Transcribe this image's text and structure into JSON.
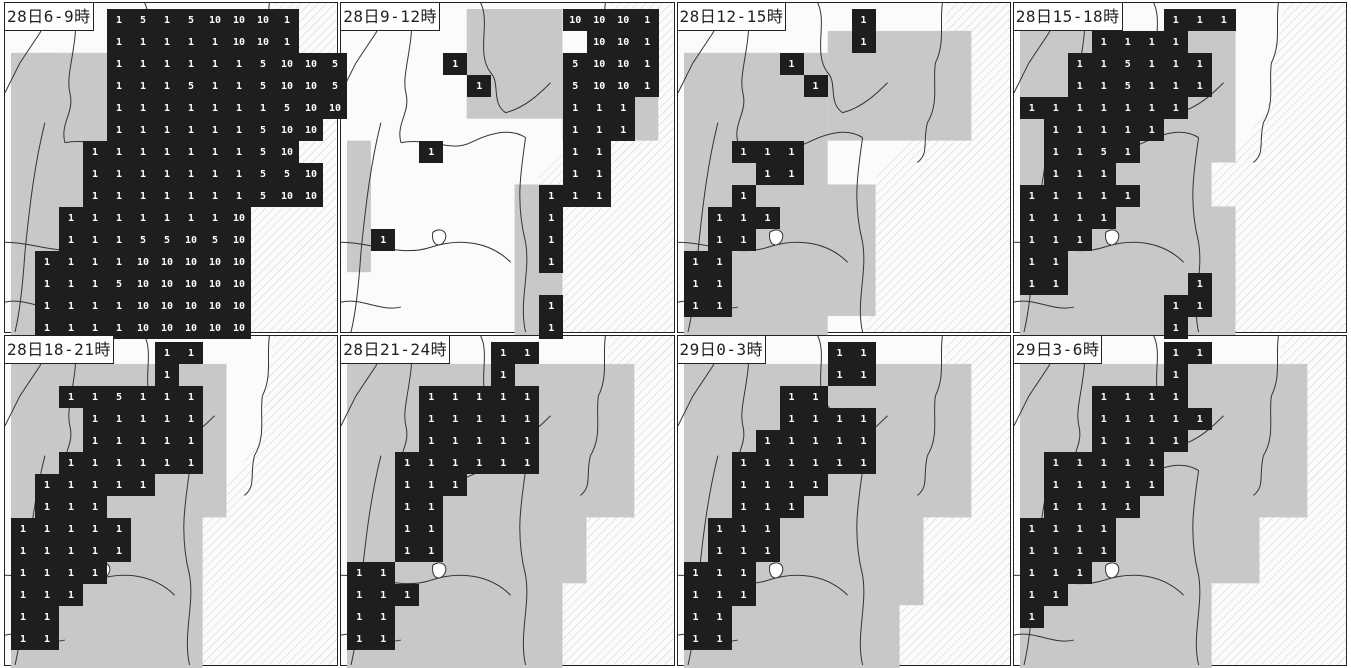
{
  "colors": {
    "dark": "#1e1e1e",
    "light": "#c8c8c8",
    "sea": "#f2f2f2",
    "border": "#222222"
  },
  "panels": [
    {
      "label": "28日6-9時",
      "light": [
        [
          0,
          2,
          2,
          8
        ],
        [
          0,
          3,
          3,
          12
        ],
        [
          1,
          2,
          9,
          13
        ],
        [
          0,
          5,
          1,
          13
        ]
      ],
      "grid": [
        [
          4,
          0,
          "1 5 1 5 10 10 10 1"
        ],
        [
          4,
          1,
          "1 1 1 1 1 10 10 1"
        ],
        [
          4,
          2,
          "1 1 1 1 1 1 5 10 10 5"
        ],
        [
          4,
          3,
          "1 1 1 5 1 1 5 10 10 5"
        ],
        [
          4,
          4,
          "1 1 1 1 1 1 1 5 10 10"
        ],
        [
          4,
          5,
          "1 1 1 1 1 1 5 10 10"
        ],
        [
          3,
          6,
          "1 1 1 1 1 1 1 5 10"
        ],
        [
          3,
          7,
          "1 1 1 1 1 1 1 5 5 10"
        ],
        [
          3,
          8,
          "1 1 1 1 1 1 1 5 10 10"
        ],
        [
          2,
          9,
          "1 1 1 1 1 1 1 10"
        ],
        [
          2,
          10,
          "1 1 1 5 5 10 5 10"
        ],
        [
          1,
          11,
          "1 1 1 1 10 10 10 10 10"
        ],
        [
          1,
          12,
          "1 1 1 5 10 10 10 10 10"
        ],
        [
          1,
          13,
          "1 1 1 1 10 10 10 10 10"
        ],
        [
          1,
          14,
          "1 1 1 1 10 10 10 10 10"
        ]
      ]
    },
    {
      "label": "28日9-12時",
      "light": [
        [
          5,
          0,
          4,
          5
        ],
        [
          9,
          2,
          4,
          4
        ],
        [
          0,
          6,
          1,
          6
        ],
        [
          7,
          8,
          2,
          7
        ]
      ],
      "grid": [
        [
          9,
          0,
          "10 10 10 1"
        ],
        [
          10,
          1,
          "10 10 1"
        ],
        [
          9,
          2,
          "5 10 10 1"
        ],
        [
          9,
          3,
          "5 10 10 1"
        ],
        [
          9,
          4,
          "1 1 1"
        ],
        [
          9,
          5,
          "1 1 1"
        ],
        [
          9,
          6,
          "1 1"
        ],
        [
          9,
          7,
          "1 1"
        ],
        [
          8,
          8,
          "1 1 1"
        ],
        [
          8,
          9,
          "1"
        ],
        [
          8,
          10,
          "1"
        ],
        [
          8,
          11,
          "1"
        ],
        [
          8,
          13,
          "1"
        ],
        [
          8,
          14,
          "1"
        ],
        [
          4,
          2,
          "1"
        ],
        [
          5,
          3,
          "1"
        ],
        [
          3,
          6,
          "1"
        ],
        [
          1,
          10,
          "1"
        ]
      ]
    },
    {
      "label": "28日12-15時",
      "light": [
        [
          0,
          2,
          6,
          13
        ],
        [
          6,
          1,
          6,
          5
        ],
        [
          2,
          8,
          6,
          6
        ]
      ],
      "grid": [
        [
          7,
          0,
          "1"
        ],
        [
          7,
          1,
          "1"
        ],
        [
          4,
          2,
          "1"
        ],
        [
          5,
          3,
          "1"
        ],
        [
          2,
          6,
          "1 1 1"
        ],
        [
          3,
          7,
          "1 1"
        ],
        [
          2,
          8,
          "1"
        ],
        [
          1,
          9,
          "1 1 1"
        ],
        [
          1,
          10,
          "1 1"
        ],
        [
          0,
          11,
          "1 1"
        ],
        [
          0,
          12,
          "1 1"
        ],
        [
          0,
          13,
          "1 1"
        ]
      ]
    },
    {
      "label": "28日15-18時",
      "light": [
        [
          0,
          1,
          9,
          6
        ],
        [
          0,
          7,
          8,
          8
        ],
        [
          6,
          9,
          3,
          6
        ]
      ],
      "grid": [
        [
          6,
          0,
          "1 1 1"
        ],
        [
          3,
          1,
          "1 1 1 1"
        ],
        [
          2,
          2,
          "1 1 5 1 1 1"
        ],
        [
          2,
          3,
          "1 1 5 1 1 1"
        ],
        [
          0,
          4,
          "1 1 1 1 1 1 1"
        ],
        [
          1,
          5,
          "1 1 1 1 1"
        ],
        [
          1,
          6,
          "1 1 5 1"
        ],
        [
          1,
          7,
          "1 1 1"
        ],
        [
          0,
          8,
          "1 1 1 1 1"
        ],
        [
          0,
          9,
          "1 1 1 1"
        ],
        [
          0,
          10,
          "1 1 1"
        ],
        [
          0,
          11,
          "1 1"
        ],
        [
          0,
          12,
          "1 1"
        ],
        [
          7,
          12,
          "1"
        ],
        [
          6,
          13,
          "1 1"
        ],
        [
          6,
          14,
          "1"
        ]
      ]
    },
    {
      "label": "28日18-21時",
      "light": [
        [
          0,
          1,
          9,
          7
        ],
        [
          0,
          8,
          8,
          7
        ],
        [
          5,
          6,
          3,
          6
        ]
      ],
      "grid": [
        [
          6,
          0,
          "1 1"
        ],
        [
          6,
          1,
          "1"
        ],
        [
          2,
          2,
          "1 1 5 1 1 1"
        ],
        [
          3,
          3,
          "1 1 1 1 1"
        ],
        [
          3,
          4,
          "1 1 1 1 1"
        ],
        [
          2,
          5,
          "1 1 1 1 1 1"
        ],
        [
          1,
          6,
          "1 1 1 1 1"
        ],
        [
          1,
          7,
          "1 1 1"
        ],
        [
          0,
          8,
          "1 1 1 1 1"
        ],
        [
          0,
          9,
          "1 1 1 1 1"
        ],
        [
          0,
          10,
          "1 1 1 1"
        ],
        [
          0,
          11,
          "1 1 1"
        ],
        [
          0,
          12,
          "1 1"
        ],
        [
          0,
          13,
          "1 1"
        ]
      ]
    },
    {
      "label": "28日21-24時",
      "light": [
        [
          0,
          1,
          12,
          7
        ],
        [
          0,
          8,
          9,
          7
        ],
        [
          6,
          6,
          4,
          5
        ]
      ],
      "grid": [
        [
          6,
          0,
          "1 1"
        ],
        [
          6,
          1,
          "1"
        ],
        [
          3,
          2,
          "1 1 1 1 1"
        ],
        [
          3,
          3,
          "1 1 1 1 1"
        ],
        [
          3,
          4,
          "1 1 1 1 1"
        ],
        [
          2,
          5,
          "1 1 1 1 1 1"
        ],
        [
          2,
          6,
          "1 1 1"
        ],
        [
          2,
          7,
          "1 1"
        ],
        [
          2,
          8,
          "1 1"
        ],
        [
          2,
          9,
          "1 1"
        ],
        [
          0,
          10,
          "1 1"
        ],
        [
          0,
          11,
          "1 1 1"
        ],
        [
          0,
          12,
          "1 1"
        ],
        [
          0,
          13,
          "1 1"
        ]
      ]
    },
    {
      "label": "29日0-3時",
      "light": [
        [
          0,
          1,
          12,
          7
        ],
        [
          0,
          8,
          9,
          7
        ],
        [
          6,
          6,
          4,
          6
        ]
      ],
      "grid": [
        [
          6,
          0,
          "1 1"
        ],
        [
          6,
          1,
          "1 1"
        ],
        [
          4,
          2,
          "1 1"
        ],
        [
          4,
          3,
          "1 1 1 1"
        ],
        [
          3,
          4,
          "1 1 1 1 1"
        ],
        [
          2,
          5,
          "1 1 1 1 1 1"
        ],
        [
          2,
          6,
          "1 1 1 1"
        ],
        [
          2,
          7,
          "1 1 1"
        ],
        [
          1,
          8,
          "1 1 1"
        ],
        [
          1,
          9,
          "1 1 1"
        ],
        [
          0,
          10,
          "1 1 1"
        ],
        [
          0,
          11,
          "1 1 1"
        ],
        [
          0,
          12,
          "1 1"
        ],
        [
          0,
          13,
          "1 1"
        ]
      ]
    },
    {
      "label": "29日3-6時",
      "light": [
        [
          0,
          1,
          12,
          7
        ],
        [
          0,
          8,
          8,
          7
        ],
        [
          6,
          6,
          4,
          5
        ]
      ],
      "grid": [
        [
          6,
          0,
          "1 1"
        ],
        [
          6,
          1,
          "1"
        ],
        [
          3,
          2,
          "1 1 1 1"
        ],
        [
          3,
          3,
          "1 1 1 1 1"
        ],
        [
          3,
          4,
          "1 1 1 1"
        ],
        [
          1,
          5,
          "1 1 1 1 1"
        ],
        [
          1,
          6,
          "1 1 1 1 1"
        ],
        [
          1,
          7,
          "1 1 1 1"
        ],
        [
          0,
          8,
          "1 1 1 1"
        ],
        [
          0,
          9,
          "1 1 1 1"
        ],
        [
          0,
          10,
          "1 1 1"
        ],
        [
          0,
          11,
          "1 1"
        ],
        [
          0,
          12,
          "1"
        ]
      ]
    }
  ]
}
